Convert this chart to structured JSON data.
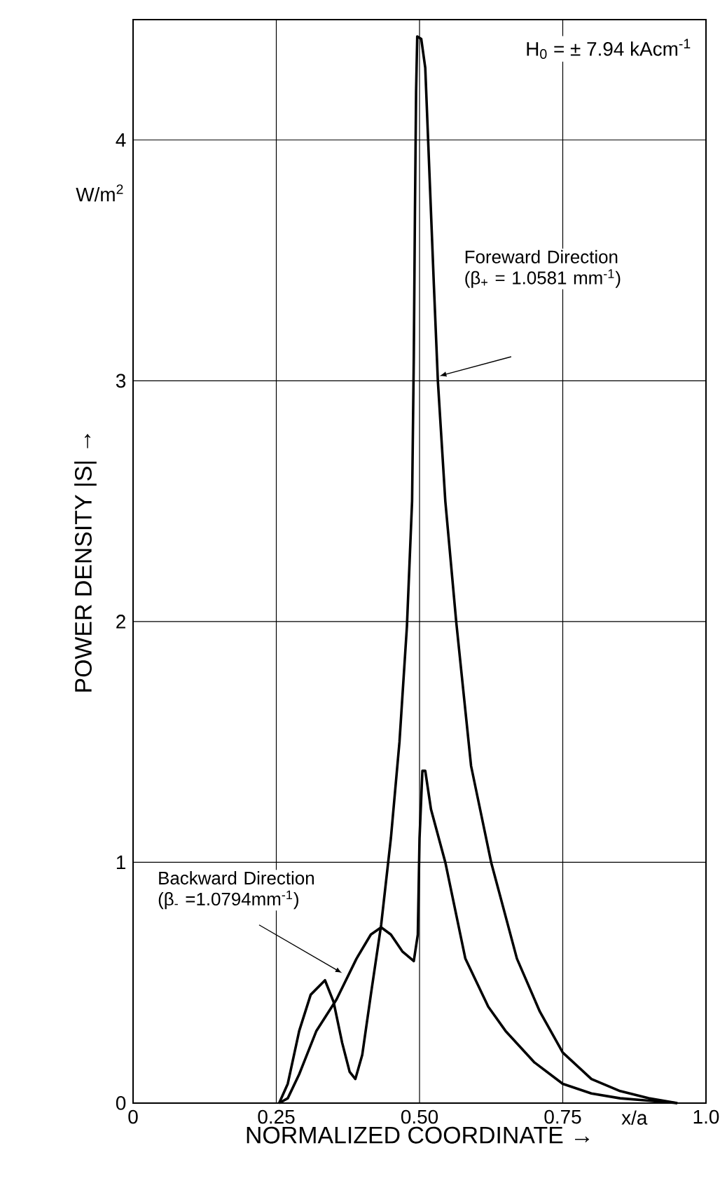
{
  "chart_data": {
    "type": "line",
    "xlabel": "NORMALIZED COORDINATE →",
    "ylabel": "POWER DENSITY |S| →",
    "xlim": [
      0,
      1.0
    ],
    "ylim": [
      0,
      4.5
    ],
    "xticks": [
      0,
      0.25,
      {
        "value": 0.5,
        "label": "0.50"
      },
      0.75,
      {
        "value": 1.0,
        "label": "1.0"
      }
    ],
    "yticks": [
      0,
      1,
      2,
      3,
      4
    ],
    "grid": true,
    "marker": "none",
    "line_style": "solid",
    "series": [
      {
        "name": "Foreward Direction (β$_{+}$ = 1.0581 mm$^{-1}$)",
        "color": "#000000",
        "x": [
          0.255,
          0.27,
          0.29,
          0.31,
          0.335,
          0.35,
          0.365,
          0.378,
          0.388,
          0.4,
          0.415,
          0.433,
          0.45,
          0.465,
          0.478,
          0.487,
          0.49,
          0.492,
          0.494,
          0.496,
          0.503,
          0.51,
          0.515,
          0.525,
          0.532,
          0.545,
          0.564,
          0.59,
          0.625,
          0.67,
          0.71,
          0.75,
          0.8,
          0.85,
          0.9,
          0.95
        ],
        "values": [
          0,
          0.08,
          0.3,
          0.45,
          0.51,
          0.42,
          0.25,
          0.13,
          0.1,
          0.2,
          0.45,
          0.74,
          1.1,
          1.5,
          1.98,
          2.5,
          3.1,
          3.7,
          4.2,
          4.43,
          4.42,
          4.3,
          4.0,
          3.4,
          3.0,
          2.5,
          2.0,
          1.4,
          1.0,
          0.6,
          0.38,
          0.21,
          0.1,
          0.05,
          0.02,
          0
        ]
      },
      {
        "name": "Backward Direction (β$_{-}$ =1.0794mm$^{-1}$)",
        "color": "#000000",
        "x": [
          0.255,
          0.27,
          0.29,
          0.32,
          0.355,
          0.39,
          0.415,
          0.433,
          0.45,
          0.47,
          0.49,
          0.497,
          0.5,
          0.505,
          0.51,
          0.52,
          0.545,
          0.58,
          0.62,
          0.65,
          0.7,
          0.75,
          0.8,
          0.85,
          0.9,
          0.95
        ],
        "values": [
          0,
          0.02,
          0.12,
          0.3,
          0.43,
          0.6,
          0.7,
          0.73,
          0.7,
          0.63,
          0.59,
          0.7,
          1.1,
          1.38,
          1.38,
          1.22,
          1.0,
          0.6,
          0.4,
          0.3,
          0.17,
          0.08,
          0.04,
          0.02,
          0.01,
          0
        ]
      }
    ],
    "annotations": [
      "H$_{0}$ = ± 7.94 kAcm$^{-1}$",
      "W/m$^{2}$",
      "x/a"
    ]
  }
}
